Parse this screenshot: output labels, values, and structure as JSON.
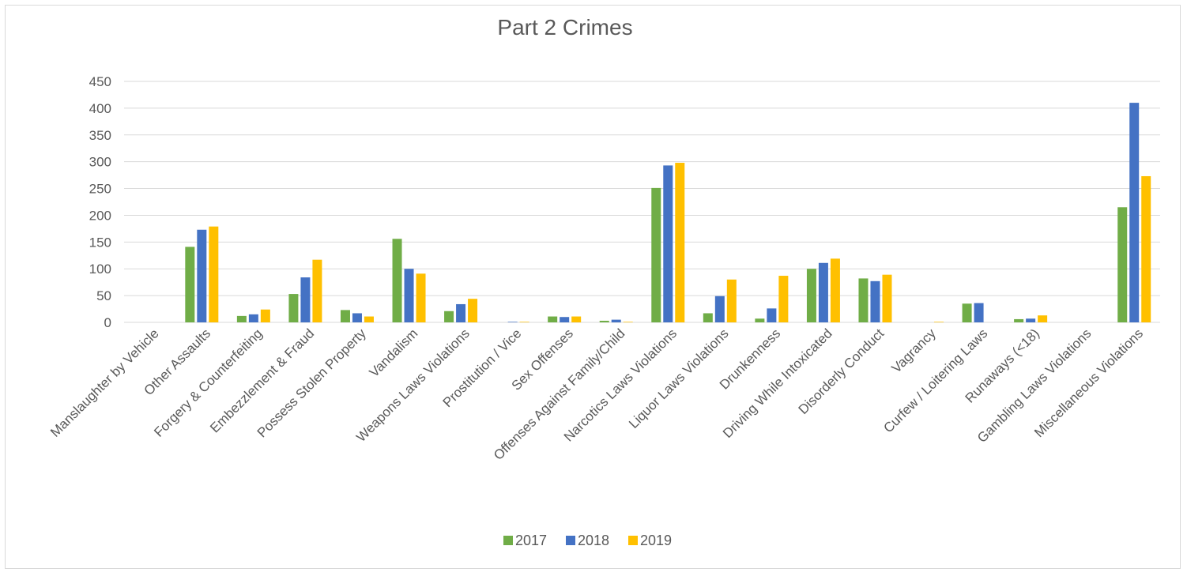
{
  "chart_data": {
    "type": "bar",
    "title": "Part 2 Crimes",
    "categories": [
      "Manslaughter by Vehicle",
      "Other Assaults",
      "Forgery & Counterfeiting",
      "Embezzlement & Fraud",
      "Possess Stolen Property",
      "Vandalism",
      "Weapons Laws Violations",
      "Prostitution / Vice",
      "Sex Offenses",
      "Offenses Against Family/Child",
      "Narcotics Laws Violations",
      "Liquor Laws Violations",
      "Drunkenness",
      "Driving While Intoxicated",
      "Disorderly Conduct",
      "Vagrancy",
      "Curfew / Loitering Laws",
      "Runaways (<18)",
      "Gambling Laws Violations",
      "Miscellaneous Violations"
    ],
    "series": [
      {
        "name": "2017",
        "color": "#70ad47",
        "values": [
          0,
          141,
          12,
          53,
          23,
          156,
          21,
          0,
          11,
          3,
          251,
          17,
          7,
          100,
          82,
          0,
          35,
          6,
          0,
          215
        ]
      },
      {
        "name": "2018",
        "color": "#4472c4",
        "values": [
          0,
          173,
          15,
          84,
          17,
          100,
          34,
          1,
          10,
          5,
          293,
          49,
          26,
          111,
          77,
          0,
          36,
          7,
          0,
          410
        ]
      },
      {
        "name": "2019",
        "color": "#ffc000",
        "values": [
          0,
          179,
          24,
          117,
          11,
          91,
          44,
          1,
          11,
          1,
          298,
          80,
          87,
          119,
          89,
          1,
          0,
          13,
          0,
          273
        ]
      }
    ],
    "ylim": [
      0,
      450
    ],
    "yticks": [
      0,
      50,
      100,
      150,
      200,
      250,
      300,
      350,
      400,
      450
    ],
    "grid": true,
    "legend": "bottom"
  }
}
